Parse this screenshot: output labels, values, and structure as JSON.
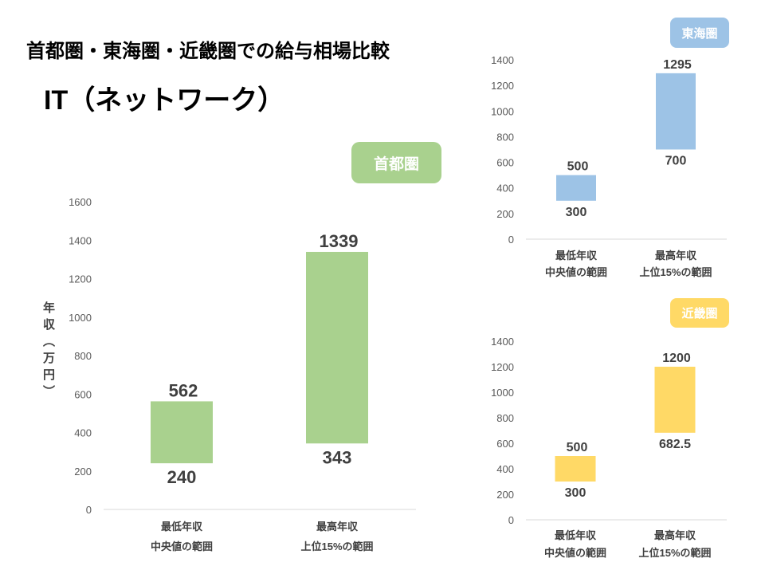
{
  "header": {
    "title": "首都圏・東海圏・近畿圏での給与相場比較",
    "subtitle": "IT（ネットワーク）"
  },
  "chart_data": [
    {
      "type": "bar",
      "subtype": "floating-range",
      "region": "首都圏",
      "color": "#a9d18e",
      "ylabel": "年収（万円）",
      "categories": [
        [
          "最低年収",
          "中央値の範囲"
        ],
        [
          "最高年収",
          "上位15%の範囲"
        ]
      ],
      "ranges": [
        {
          "low": 240,
          "high": 562
        },
        {
          "low": 343,
          "high": 1339
        }
      ],
      "yticks": [
        0,
        200,
        400,
        600,
        800,
        1000,
        1200,
        1400,
        1600
      ],
      "ylim": [
        0,
        1600
      ]
    },
    {
      "type": "bar",
      "subtype": "floating-range",
      "region": "東海圏",
      "color": "#9dc3e6",
      "categories": [
        [
          "最低年収",
          "中央値の範囲"
        ],
        [
          "最高年収",
          "上位15%の範囲"
        ]
      ],
      "ranges": [
        {
          "low": 300,
          "high": 500
        },
        {
          "low": 700,
          "high": 1295
        }
      ],
      "yticks": [
        0,
        200,
        400,
        600,
        800,
        1000,
        1200,
        1400
      ],
      "ylim": [
        0,
        1400
      ]
    },
    {
      "type": "bar",
      "subtype": "floating-range",
      "region": "近畿圏",
      "color": "#ffd966",
      "categories": [
        [
          "最低年収",
          "中央値の範囲"
        ],
        [
          "最高年収",
          "上位15%の範囲"
        ]
      ],
      "ranges": [
        {
          "low": 300,
          "high": 500
        },
        {
          "low": "682.5",
          "high": 1200
        }
      ],
      "yticks": [
        0,
        200,
        400,
        600,
        800,
        1000,
        1200,
        1400
      ],
      "ylim": [
        0,
        1400
      ]
    }
  ]
}
